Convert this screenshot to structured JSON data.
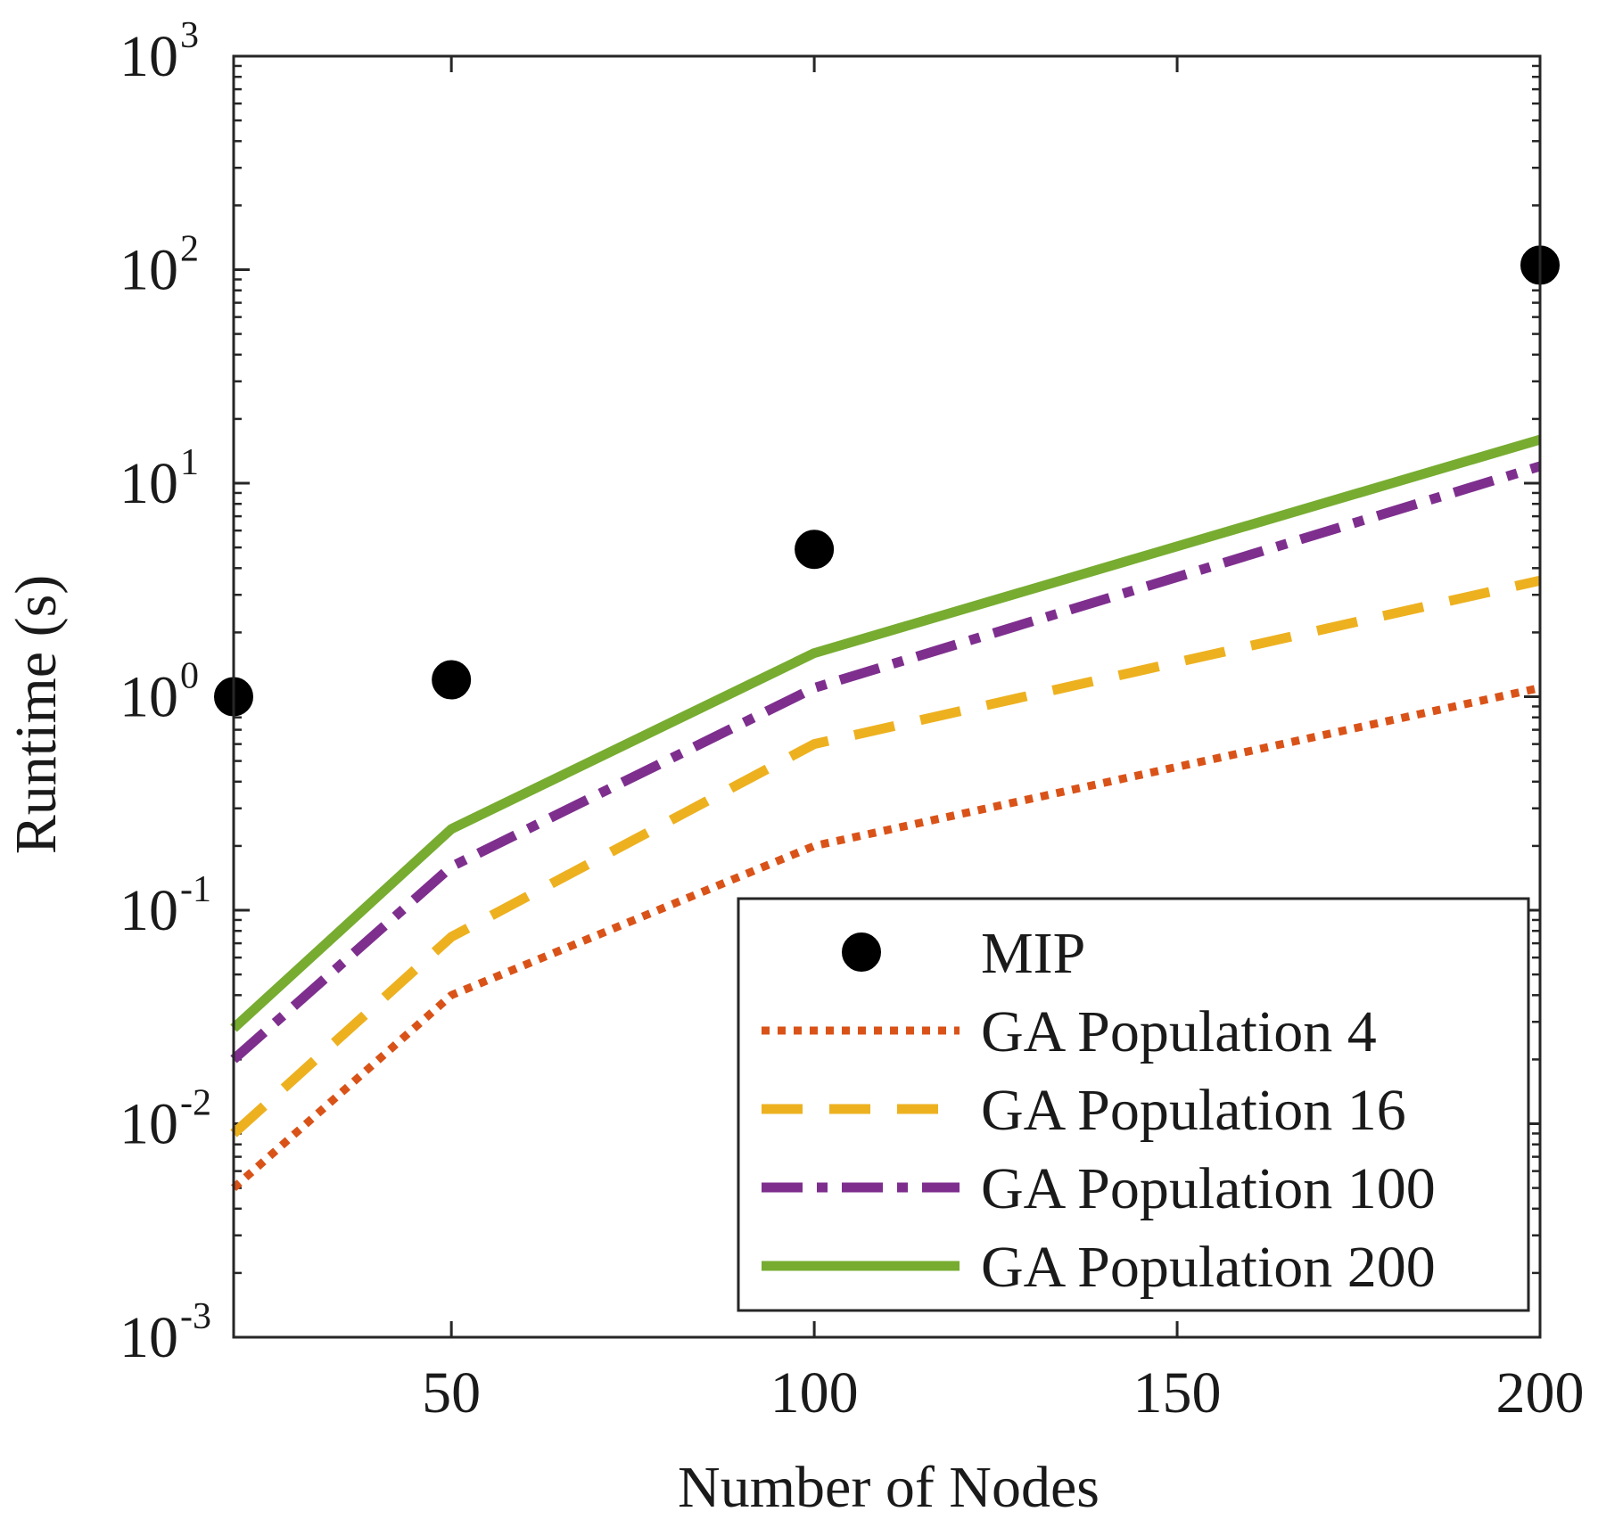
{
  "chart_data": {
    "type": "line",
    "title": "",
    "xlabel": "Number of Nodes",
    "ylabel": "Runtime (s)",
    "xlim": [
      20,
      200
    ],
    "ylim": [
      0.001,
      1000
    ],
    "yscale": "log",
    "x_ticks": [
      50,
      100,
      150,
      200
    ],
    "y_ticks": [
      {
        "value": 0.001,
        "base": "10",
        "exp": "-3"
      },
      {
        "value": 0.01,
        "base": "10",
        "exp": "-2"
      },
      {
        "value": 0.1,
        "base": "10",
        "exp": "-1"
      },
      {
        "value": 1,
        "base": "10",
        "exp": "0"
      },
      {
        "value": 10,
        "base": "10",
        "exp": "1"
      },
      {
        "value": 100,
        "base": "10",
        "exp": "2"
      },
      {
        "value": 1000,
        "base": "10",
        "exp": "3"
      }
    ],
    "x": [
      20,
      50,
      100,
      200
    ],
    "legend_position": "bottom-right",
    "series": [
      {
        "name": "MIP",
        "style": "markers",
        "color": "#000000",
        "values": [
          1.0,
          1.2,
          4.9,
          105
        ]
      },
      {
        "name": "GA Population 4",
        "style": "dotted",
        "color": "#D95319",
        "values": [
          0.005,
          0.04,
          0.2,
          1.1
        ]
      },
      {
        "name": "GA Population 16",
        "style": "dashed",
        "color": "#EDB120",
        "values": [
          0.009,
          0.075,
          0.6,
          3.5
        ]
      },
      {
        "name": "GA Population 100",
        "style": "dashdot",
        "color": "#7E2F8E",
        "values": [
          0.02,
          0.16,
          1.1,
          12
        ]
      },
      {
        "name": "GA Population 200",
        "style": "solid",
        "color": "#77AC30",
        "values": [
          0.028,
          0.24,
          1.6,
          16
        ]
      }
    ]
  }
}
